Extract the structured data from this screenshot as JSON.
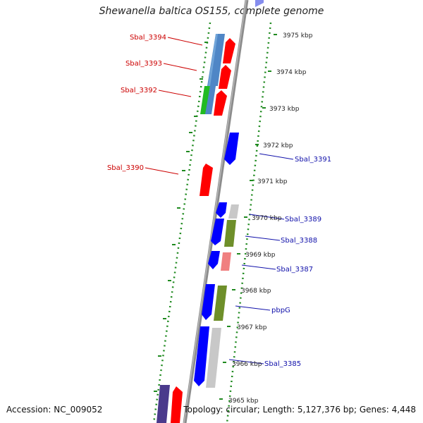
{
  "title": "Shewanella baltica OS155, complete genome",
  "accession": "Accession: NC_009052",
  "footer": "Topology: circular; Length: 5,127,376 bp; Genes: 4,448",
  "colors": {
    "backbone": "#8c8c8c",
    "ticks": "#1f8a1f",
    "left_label": "#cc0000",
    "right_label": "#1010aa",
    "tick_label": "#222222"
  },
  "kbp_ticks": [
    "3975 kbp",
    "3974 kbp",
    "3973 kbp",
    "3972 kbp",
    "3971 kbp",
    "3970 kbp",
    "3969 kbp",
    "3968 kbp",
    "3967 kbp",
    "3966 kbp",
    "3965 kbp"
  ],
  "gene_labels_left": [
    "Sbal_3394",
    "Sbal_3393",
    "Sbal_3392",
    "Sbal_3390"
  ],
  "gene_labels_right": [
    "Sbal_3391",
    "Sbal_3389",
    "Sbal_3388",
    "Sbal_3387",
    "pbpG",
    "Sbal_3385"
  ],
  "gene_colors": {
    "reverse_strand": "#ff0000",
    "forward_strand": "#0000ff",
    "steel_blue": "#4f86c6",
    "green": "#22bb22",
    "olive": "#6e8f2a",
    "pink": "#f08080",
    "silver": "#c8c8c8",
    "purple": "#4a3a8c"
  }
}
